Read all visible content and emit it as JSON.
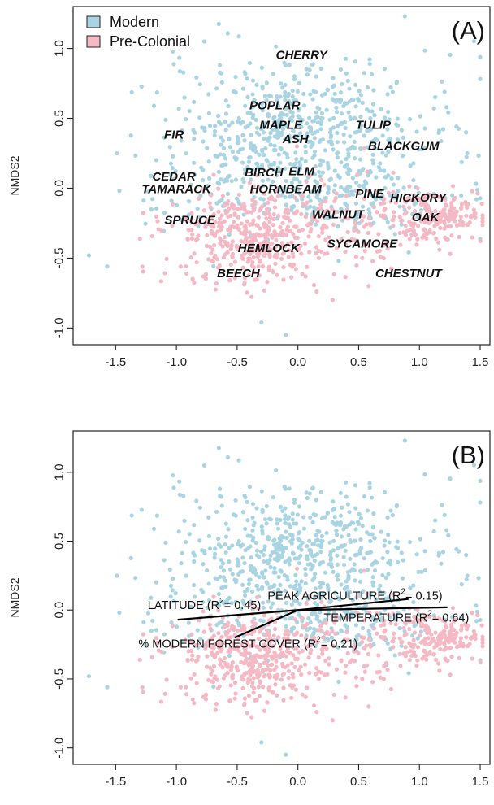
{
  "colors": {
    "modern": "#a9d4e2",
    "precolonial": "#f4b9c4",
    "frame": "#222222",
    "vector": "#000000"
  },
  "legend": {
    "items": [
      {
        "label": "Modern",
        "color": "#a9d4e2"
      },
      {
        "label": "Pre-Colonial",
        "color": "#f4b9c4"
      }
    ]
  },
  "chart_data": [
    {
      "type": "scatter",
      "panel_label": "(A)",
      "xlabel": "",
      "ylabel": "NMDS2",
      "xlim": [
        -1.85,
        1.58
      ],
      "ylim": [
        -1.12,
        1.3
      ],
      "x_ticks": [
        -1.5,
        -1.0,
        -0.5,
        0.0,
        0.5,
        1.0,
        1.5
      ],
      "x_tick_labels": [
        "-1.5",
        "-1.0",
        "-0.5",
        "0.0",
        "0.5",
        "1.0",
        "1.5"
      ],
      "y_ticks": [
        -1.0,
        -0.5,
        0.0,
        0.5,
        1.0
      ],
      "y_tick_labels": [
        "-1.0",
        "-0.5",
        "0.0",
        "0.5",
        "1.0"
      ],
      "legend_position": "top-left",
      "species_labels": [
        {
          "text": "CHERRY",
          "x": 0.03,
          "y": 0.95
        },
        {
          "text": "POPLAR",
          "x": -0.19,
          "y": 0.59
        },
        {
          "text": "MAPLE",
          "x": -0.14,
          "y": 0.45
        },
        {
          "text": "ASH",
          "x": -0.02,
          "y": 0.35
        },
        {
          "text": "TULIP",
          "x": 0.62,
          "y": 0.45
        },
        {
          "text": "BLACKGUM",
          "x": 0.87,
          "y": 0.3
        },
        {
          "text": "FIR",
          "x": -1.02,
          "y": 0.38
        },
        {
          "text": "BIRCH",
          "x": -0.28,
          "y": 0.11
        },
        {
          "text": "ELM",
          "x": 0.03,
          "y": 0.12
        },
        {
          "text": "CEDAR",
          "x": -1.02,
          "y": 0.08
        },
        {
          "text": "TAMARACK",
          "x": -1.0,
          "y": -0.01
        },
        {
          "text": "HORNBEAM",
          "x": -0.1,
          "y": -0.01
        },
        {
          "text": "PINE",
          "x": 0.59,
          "y": -0.04
        },
        {
          "text": "HICKORY",
          "x": 0.99,
          "y": -0.07
        },
        {
          "text": "SPRUCE",
          "x": -0.89,
          "y": -0.23
        },
        {
          "text": "WALNUT",
          "x": 0.33,
          "y": -0.19
        },
        {
          "text": "OAK",
          "x": 1.05,
          "y": -0.21
        },
        {
          "text": "HEMLOCK",
          "x": -0.24,
          "y": -0.43
        },
        {
          "text": "SYCAMORE",
          "x": 0.53,
          "y": -0.4
        },
        {
          "text": "BEECH",
          "x": -0.49,
          "y": -0.61
        },
        {
          "text": "CHESTNUT",
          "x": 0.91,
          "y": -0.61
        }
      ]
    },
    {
      "type": "scatter",
      "panel_label": "(B)",
      "xlabel": "",
      "ylabel": "NMDS2",
      "xlim": [
        -1.85,
        1.58
      ],
      "ylim": [
        -1.12,
        1.3
      ],
      "x_ticks": [
        -1.5,
        -1.0,
        -0.5,
        0.0,
        0.5,
        1.0,
        1.5
      ],
      "x_tick_labels": [
        "-1.5",
        "-1.0",
        "-0.5",
        "0.0",
        "0.5",
        "1.0",
        "1.5"
      ],
      "y_ticks": [
        -1.0,
        -0.5,
        0.0,
        0.5,
        1.0
      ],
      "y_tick_labels": [
        "-1.0",
        "-0.5",
        "0.0",
        "0.5",
        "1.0"
      ],
      "vectors": [
        {
          "label": "LATITUDE (R",
          "sup": "2",
          "tail": "= 0.45)",
          "x0": 0.0,
          "y0": 0.0,
          "x1": -0.99,
          "y1": -0.07,
          "lx": -0.77,
          "ly": 0.03
        },
        {
          "label": "PEAK AGRICULTURE (R",
          "sup": "2",
          "tail": "= 0.15)",
          "x0": 0.0,
          "y0": 0.0,
          "x1": 0.91,
          "y1": 0.08,
          "lx": 0.47,
          "ly": 0.1
        },
        {
          "label": "TEMPERATURE (R",
          "sup": "2",
          "tail": "= 0.64)",
          "x0": 0.0,
          "y0": 0.0,
          "x1": 1.23,
          "y1": 0.02,
          "lx": 0.81,
          "ly": -0.06
        },
        {
          "label": "% MODERN FOREST COVER (R",
          "sup": "2",
          "tail": "= 0.21)",
          "x0": 0.0,
          "y0": 0.0,
          "x1": -0.52,
          "y1": -0.2,
          "lx": -0.41,
          "ly": -0.25
        }
      ]
    }
  ]
}
